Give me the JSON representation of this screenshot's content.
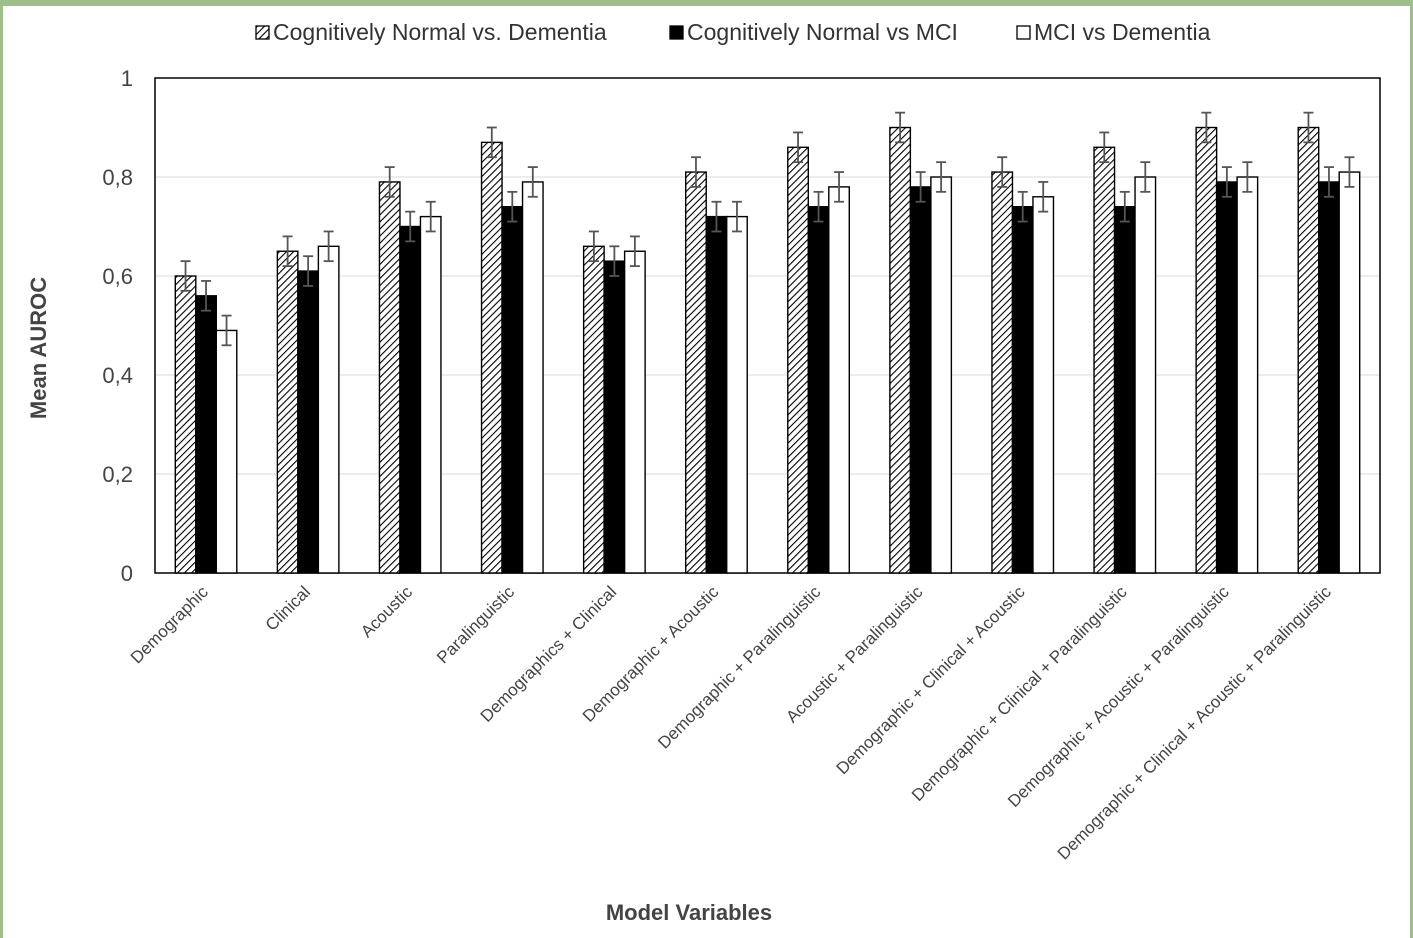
{
  "chart_data": {
    "type": "bar",
    "xlabel": "Model Variables",
    "ylabel": "Mean AUROC",
    "ylim": [
      0,
      1
    ],
    "yticks": [
      "0",
      "0,2",
      "0,4",
      "0,6",
      "0,8",
      "1"
    ],
    "grid": true,
    "legend_position": "top",
    "categories": [
      "Demographic",
      "Clinical",
      "Acoustic",
      "Paralinguistic",
      "Demographics + Clinical",
      "Demographic + Acoustic",
      "Demographic + Paralinguistic",
      "Acoustic + Paralinguistic",
      "Demographic + Clinical + Acoustic",
      "Demographic + Clinical + Paralinguistic",
      "Demographic + Acoustic + Paralinguistic",
      "Demographic + Clinical + Acoustic + Paralinguistic"
    ],
    "series": [
      {
        "name": "Cognitively Normal vs. Dementia",
        "fill": "hatched",
        "values": [
          0.6,
          0.65,
          0.79,
          0.87,
          0.66,
          0.81,
          0.86,
          0.9,
          0.81,
          0.86,
          0.9,
          0.9
        ],
        "errors": [
          0.03,
          0.03,
          0.03,
          0.03,
          0.03,
          0.03,
          0.03,
          0.03,
          0.03,
          0.03,
          0.03,
          0.03
        ]
      },
      {
        "name": "Cognitively Normal vs MCI",
        "fill": "#000000",
        "values": [
          0.56,
          0.61,
          0.7,
          0.74,
          0.63,
          0.72,
          0.74,
          0.78,
          0.74,
          0.74,
          0.79,
          0.79
        ],
        "errors": [
          0.03,
          0.03,
          0.03,
          0.03,
          0.03,
          0.03,
          0.03,
          0.03,
          0.03,
          0.03,
          0.03,
          0.03
        ]
      },
      {
        "name": "MCI vs Dementia",
        "fill": "#ffffff",
        "values": [
          0.49,
          0.66,
          0.72,
          0.79,
          0.65,
          0.72,
          0.78,
          0.8,
          0.76,
          0.8,
          0.8,
          0.81
        ],
        "errors": [
          0.03,
          0.03,
          0.03,
          0.03,
          0.03,
          0.03,
          0.03,
          0.03,
          0.03,
          0.03,
          0.03,
          0.03
        ]
      }
    ]
  }
}
